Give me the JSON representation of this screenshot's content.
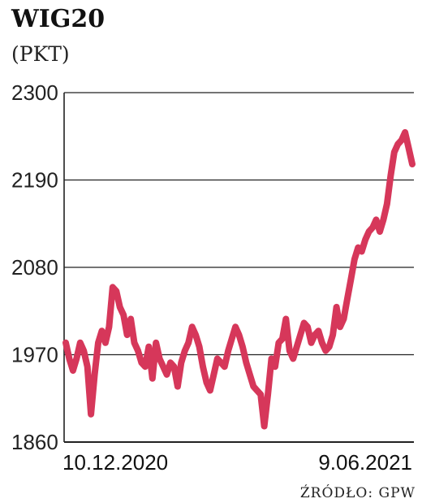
{
  "chart_data": {
    "type": "line",
    "title": "WIG20",
    "subtitle": "(PKT)",
    "source": "ŹRÓDŁO: GPW",
    "ylim": [
      1860,
      2300
    ],
    "yticks": [
      "2300",
      "2190",
      "2080",
      "1970",
      "1860"
    ],
    "xticks": [
      "10.12.2020",
      "9.06.2021"
    ],
    "grid": true,
    "colors": {
      "line": "#d6375a",
      "axis": "#222222",
      "grid": "#222222",
      "text": "#222222"
    },
    "series": [
      {
        "values": [
          1985,
          1965,
          1950,
          1965,
          1985,
          1975,
          1955,
          1895,
          1945,
          1985,
          2000,
          1985,
          2005,
          2055,
          2050,
          2030,
          2020,
          1995,
          2015,
          1985,
          1975,
          1960,
          1955,
          1980,
          1940,
          1985,
          1965,
          1955,
          1945,
          1960,
          1955,
          1930,
          1960,
          1975,
          1985,
          2005,
          1995,
          1980,
          1955,
          1935,
          1925,
          1945,
          1965,
          1960,
          1955,
          1975,
          1990,
          2005,
          1995,
          1980,
          1960,
          1945,
          1930,
          1925,
          1920,
          1880,
          1920,
          1965,
          1955,
          1985,
          1990,
          2015,
          1975,
          1965,
          1980,
          1995,
          2010,
          2005,
          1985,
          1995,
          2000,
          1985,
          1975,
          1980,
          1995,
          2030,
          2005,
          2015,
          2040,
          2065,
          2090,
          2105,
          2100,
          2115,
          2125,
          2130,
          2140,
          2125,
          2140,
          2160,
          2195,
          2225,
          2235,
          2240,
          2250,
          2230,
          2210
        ]
      }
    ]
  }
}
